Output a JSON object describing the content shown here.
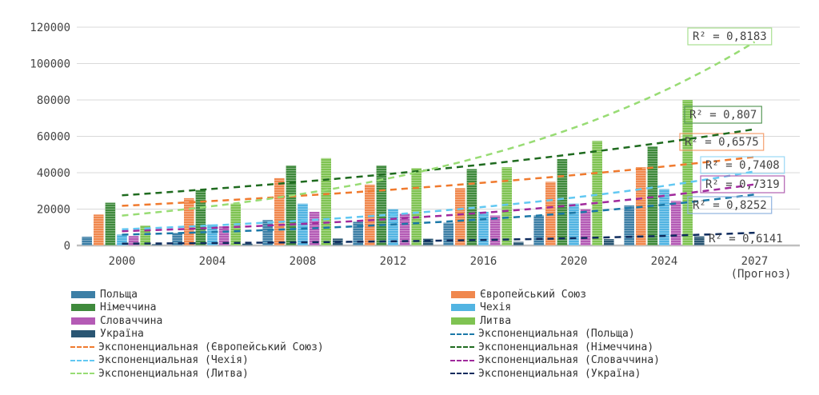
{
  "chart_data": {
    "type": "bar",
    "title": "",
    "xlabel": "",
    "ylabel": "",
    "ylim": [
      0,
      120000
    ],
    "yticks": [
      "0",
      "20000",
      "40000",
      "60000",
      "80000",
      "100000",
      "120000"
    ],
    "categories": [
      "2000",
      "2004",
      "2008",
      "2012",
      "2016",
      "2020",
      "2024",
      "2027"
    ],
    "category_sublabels": [
      "",
      "",
      "",
      "",
      "",
      "",
      "",
      "(Прогноз)"
    ],
    "grid": true,
    "legend_position": "bottom",
    "series": [
      {
        "name": "Польща",
        "color": "#3d7fa6",
        "values": [
          4800,
          6900,
          14000,
          13000,
          12500,
          16500,
          22000,
          null
        ]
      },
      {
        "name": "Європейський Союз",
        "color": "#f0884e",
        "values": [
          17000,
          26000,
          37000,
          33500,
          31500,
          35000,
          43000,
          null
        ]
      },
      {
        "name": "Німеччина",
        "color": "#3f8a3c",
        "values": [
          23500,
          30500,
          44000,
          44000,
          42000,
          47500,
          54500,
          null
        ]
      },
      {
        "name": "Чехія",
        "color": "#52b4e2",
        "values": [
          6000,
          11500,
          23000,
          20000,
          18500,
          23000,
          31000,
          null
        ]
      },
      {
        "name": "Словаччина",
        "color": "#b45bb5",
        "values": [
          5200,
          10500,
          18500,
          17500,
          16500,
          20000,
          24500,
          null
        ]
      },
      {
        "name": "Литва",
        "color": "#7fc352",
        "values": [
          11000,
          23000,
          48000,
          42500,
          43000,
          57500,
          80000,
          null
        ]
      },
      {
        "name": "Україна",
        "color": "#2a5673",
        "values": [
          700,
          1000,
          3800,
          3700,
          2000,
          3500,
          5000,
          null
        ]
      }
    ],
    "trendlines": [
      {
        "name": "Экспоненциальная (Польща)",
        "series": 0,
        "color": "#1b78a8",
        "r2": "R² = 0,8252",
        "box": "#8fb3e0"
      },
      {
        "name": "Экспоненциальная (Європейський Союз)",
        "series": 1,
        "color": "#f07a2e",
        "r2": "R² = 0,6575",
        "box": "#f5a070"
      },
      {
        "name": "Экспоненциальная (Німеччина)",
        "series": 2,
        "color": "#1f6b1f",
        "r2": "R² = 0,807",
        "box": "#5a9a5a"
      },
      {
        "name": "Экспоненциальная (Чехія)",
        "series": 3,
        "color": "#62c8f2",
        "r2": "R² = 0,7408",
        "box": "#9ad8f5"
      },
      {
        "name": "Экспоненциальная (Словаччина)",
        "series": 4,
        "color": "#a02a9c",
        "r2": "R² = 0,7319",
        "box": "#b060b0"
      },
      {
        "name": "Экспоненциальная (Литва)",
        "series": 5,
        "color": "#98dc74",
        "r2": "R² = 0,8183",
        "box": "#a8e090"
      },
      {
        "name": "Экспоненциальная (Україна)",
        "series": 6,
        "color": "#0f2c5e",
        "r2": "R² = 0,6141",
        "box": ""
      }
    ]
  }
}
